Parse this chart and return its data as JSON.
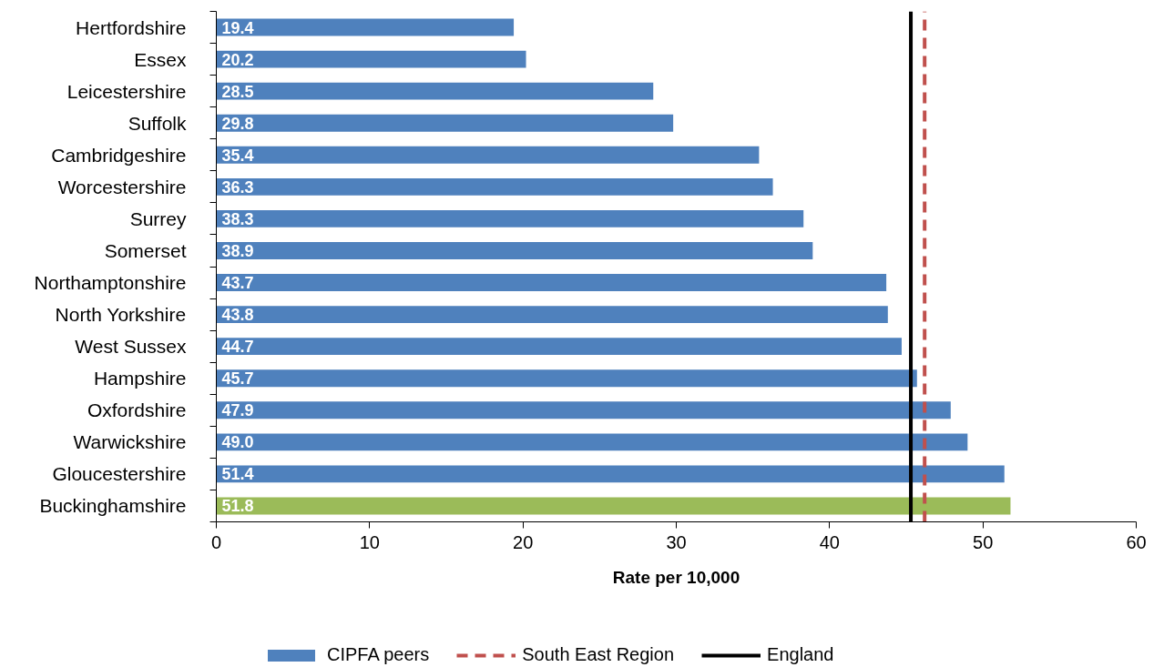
{
  "chart_data": {
    "type": "bar",
    "orientation": "horizontal",
    "xlabel": "Rate per 10,000",
    "categories": [
      "Hertfordshire",
      "Essex",
      "Leicestershire",
      "Suffolk",
      "Cambridgeshire",
      "Worcestershire",
      "Surrey",
      "Somerset",
      "Northamptonshire",
      "North Yorkshire",
      "West Sussex",
      "Hampshire",
      "Oxfordshire",
      "Warwickshire",
      "Gloucestershire",
      "Buckinghamshire"
    ],
    "series": [
      {
        "name": "CIPFA peers",
        "color": "#4f81bd",
        "colors": [
          "#4f81bd",
          "#4f81bd",
          "#4f81bd",
          "#4f81bd",
          "#4f81bd",
          "#4f81bd",
          "#4f81bd",
          "#4f81bd",
          "#4f81bd",
          "#4f81bd",
          "#4f81bd",
          "#4f81bd",
          "#4f81bd",
          "#4f81bd",
          "#4f81bd",
          "#9bbb59"
        ],
        "values": [
          19.4,
          20.2,
          28.5,
          29.8,
          35.4,
          36.3,
          38.3,
          38.9,
          43.7,
          43.8,
          44.7,
          45.7,
          47.9,
          49.0,
          51.4,
          51.8
        ],
        "value_labels": [
          "19.4",
          "20.2",
          "28.5",
          "29.8",
          "35.4",
          "36.3",
          "38.3",
          "38.9",
          "43.7",
          "43.8",
          "44.7",
          "45.7",
          "47.9",
          "49.0",
          "51.4",
          "51.8"
        ]
      }
    ],
    "xlim": [
      0,
      60
    ],
    "xticks": [
      0,
      10,
      20,
      30,
      40,
      50,
      60
    ],
    "grid": false,
    "legend": "bottom",
    "ref_lines": [
      {
        "axis": "x",
        "value": 46.2,
        "label": "South East Region",
        "color": "#c0504d",
        "line_style": "dashed"
      },
      {
        "axis": "x",
        "value": 45.3,
        "label": "England",
        "color": "#000000",
        "line_style": "solid"
      }
    ]
  }
}
